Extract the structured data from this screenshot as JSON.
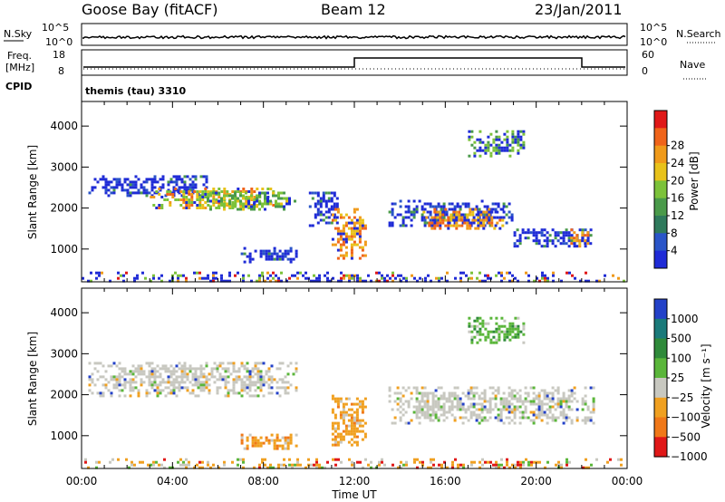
{
  "header": {
    "station": "Goose Bay (fitACF)",
    "beam": "Beam 12",
    "date": "23/Jan/2011"
  },
  "noise_panel": {
    "left_label": "N.Sky",
    "left_ticks": [
      "10^5",
      "10^0"
    ],
    "right_label": "N.Search",
    "right_ticks": [
      "10^5",
      "10^0"
    ]
  },
  "freq_panel": {
    "left_label_line1": "Freq.",
    "left_label_line2": "[MHz]",
    "left_ticks": [
      "18",
      "8"
    ],
    "right_label": "Nave",
    "right_ticks": [
      "60",
      "0"
    ],
    "cpid_label": "CPID",
    "cpid_value": "themis (tau) 3310"
  },
  "colors": {
    "power_scale": [
      "#1f2bd6",
      "#2a55c8",
      "#2f7a5c",
      "#4a9a4a",
      "#7cc23a",
      "#e8c21a",
      "#f09a1a",
      "#f0641a",
      "#e01818"
    ],
    "velocity_scale": [
      "#2341c8",
      "#1a7a7a",
      "#2f8a3a",
      "#5ab63a",
      "#c8c8c0",
      "#f0a020",
      "#f07818",
      "#e01818"
    ]
  },
  "chart_data": [
    {
      "type": "heatmap",
      "name": "power",
      "xlabel": "",
      "ylabel": "Slant Range [km]",
      "x_ticks": [
        "",
        "",
        "",
        "",
        "",
        "",
        ""
      ],
      "y_ticks": [
        1000,
        2000,
        3000,
        4000
      ],
      "ylim": [
        200,
        4600
      ],
      "xlim_hours": [
        0,
        24
      ],
      "colorbar_label": "Power [dB]",
      "colorbar_ticks": [
        4,
        8,
        12,
        16,
        20,
        24,
        28
      ],
      "echo_regions": [
        {
          "t": [
            0.3,
            5.5
          ],
          "range_km": [
            2300,
            2800
          ],
          "level": "blue"
        },
        {
          "t": [
            3.0,
            8.5
          ],
          "range_km": [
            2000,
            2500
          ],
          "level": "high"
        },
        {
          "t": [
            5.5,
            9.5
          ],
          "range_km": [
            2000,
            2400
          ],
          "level": "yellow-green"
        },
        {
          "t": [
            7.0,
            9.5
          ],
          "range_km": [
            700,
            1050
          ],
          "level": "blue"
        },
        {
          "t": [
            10.0,
            11.3
          ],
          "range_km": [
            1600,
            2400
          ],
          "level": "blue"
        },
        {
          "t": [
            11.0,
            12.5
          ],
          "range_km": [
            800,
            2000
          ],
          "level": "orange"
        },
        {
          "t": [
            13.5,
            19.0
          ],
          "range_km": [
            1600,
            2200
          ],
          "level": "blue"
        },
        {
          "t": [
            15.0,
            18.5
          ],
          "range_km": [
            1500,
            2000
          ],
          "level": "orange"
        },
        {
          "t": [
            19.0,
            22.5
          ],
          "range_km": [
            1100,
            1500
          ],
          "level": "blue"
        },
        {
          "t": [
            21.5,
            22.4
          ],
          "range_km": [
            1100,
            1500
          ],
          "level": "orange"
        },
        {
          "t": [
            17.0,
            19.5
          ],
          "range_km": [
            3300,
            3900
          ],
          "level": "green"
        },
        {
          "t": [
            0.0,
            24.0
          ],
          "range_km": [
            200,
            450
          ],
          "level": "ground"
        }
      ]
    },
    {
      "type": "heatmap",
      "name": "velocity",
      "xlabel": "Time UT",
      "ylabel": "Slant Range [km]",
      "x_ticks": [
        "00:00",
        "04:00",
        "08:00",
        "12:00",
        "16:00",
        "20:00",
        "00:00"
      ],
      "y_ticks": [
        1000,
        2000,
        3000,
        4000
      ],
      "ylim": [
        200,
        4600
      ],
      "xlim_hours": [
        0,
        24
      ],
      "colorbar_label": "Velocity [m s⁻¹]",
      "colorbar_ticks": [
        "1000",
        "500",
        "100",
        "25",
        "−25",
        "−100",
        "−500",
        "−1000"
      ],
      "echo_regions": [
        {
          "t": [
            0.3,
            9.5
          ],
          "range_km": [
            2000,
            2800
          ],
          "level": "grey"
        },
        {
          "t": [
            7.0,
            9.5
          ],
          "range_km": [
            700,
            1050
          ],
          "level": "orange"
        },
        {
          "t": [
            11.0,
            12.5
          ],
          "range_km": [
            800,
            2000
          ],
          "level": "orange"
        },
        {
          "t": [
            13.5,
            22.5
          ],
          "range_km": [
            1300,
            2200
          ],
          "level": "grey"
        },
        {
          "t": [
            17.0,
            19.5
          ],
          "range_km": [
            3300,
            3900
          ],
          "level": "green"
        },
        {
          "t": [
            0.0,
            24.0
          ],
          "range_km": [
            200,
            450
          ],
          "level": "orange-ground"
        }
      ]
    }
  ]
}
